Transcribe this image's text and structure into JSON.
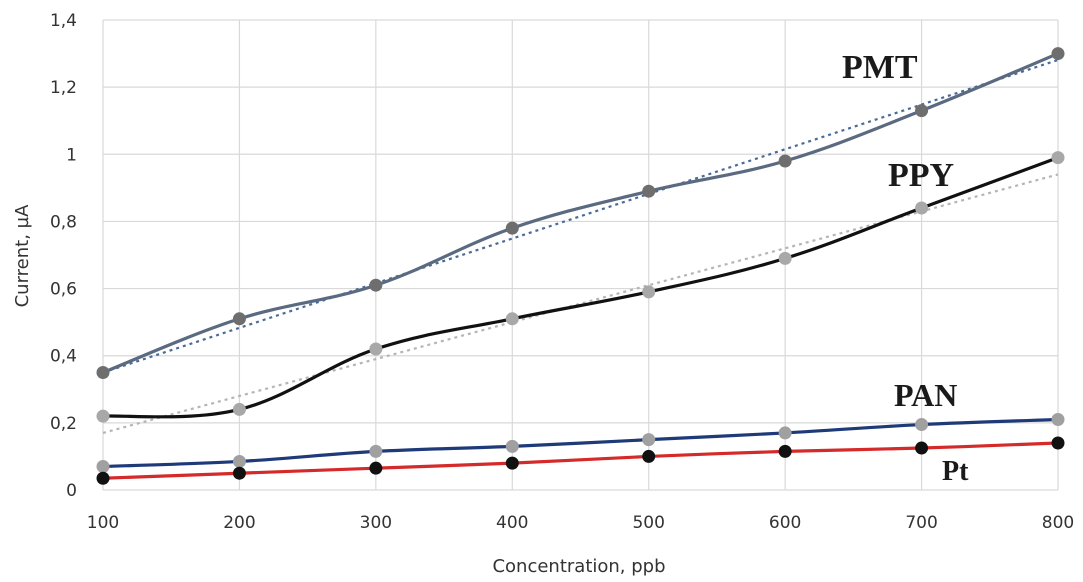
{
  "chart_data": {
    "type": "line",
    "title": "",
    "xlabel": "Concentration, ppb",
    "ylabel": "Current, µA",
    "x": [
      100,
      200,
      300,
      400,
      500,
      600,
      700,
      800
    ],
    "xlim": [
      100,
      800
    ],
    "ylim": [
      0,
      1.4
    ],
    "x_ticks": [
      "100",
      "200",
      "300",
      "400",
      "500",
      "600",
      "700",
      "800"
    ],
    "y_ticks": [
      "0",
      "0,2",
      "0,4",
      "0,6",
      "0,8",
      "1",
      "1,2",
      "1,4"
    ],
    "grid": true,
    "trendlines": "dotted linear fit per series",
    "series": [
      {
        "name": "PMT",
        "values": [
          0.35,
          0.51,
          0.61,
          0.78,
          0.89,
          0.98,
          1.13,
          1.3
        ],
        "line_color": "#5a6a80",
        "marker_color": "#6e6e6e",
        "trend": [
          0.35,
          0.483,
          0.616,
          0.749,
          0.882,
          1.015,
          1.148,
          1.281
        ],
        "trend_color": "#4a6a9a"
      },
      {
        "name": "PPY",
        "values": [
          0.22,
          0.24,
          0.42,
          0.51,
          0.59,
          0.69,
          0.84,
          0.99
        ],
        "line_color": "#111111",
        "marker_color": "#a8a8a8",
        "trend": [
          0.17,
          0.28,
          0.39,
          0.5,
          0.61,
          0.72,
          0.83,
          0.94
        ],
        "trend_color": "#b5b5b5"
      },
      {
        "name": "PAN",
        "values": [
          0.07,
          0.085,
          0.115,
          0.13,
          0.15,
          0.17,
          0.195,
          0.21
        ],
        "line_color": "#1f3a78",
        "marker_color": "#a0a0a0"
      },
      {
        "name": "Pt",
        "values": [
          0.035,
          0.05,
          0.065,
          0.08,
          0.1,
          0.115,
          0.125,
          0.14
        ],
        "line_color": "#d42a2a",
        "marker_color": "#111111"
      }
    ]
  }
}
